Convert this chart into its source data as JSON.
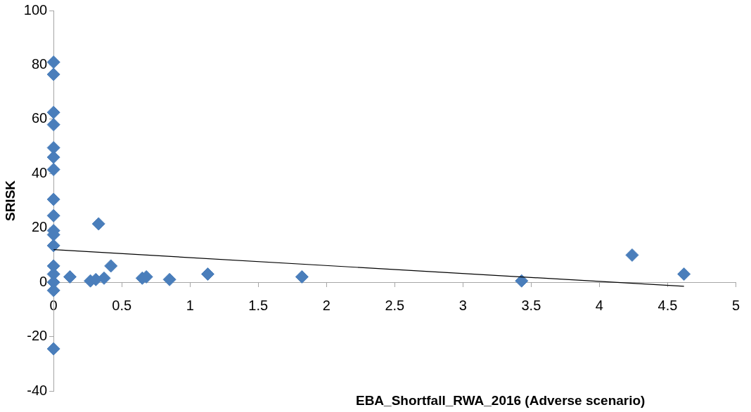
{
  "chart_data": {
    "type": "scatter",
    "xlabel": "EBA_Shortfall_RWA_2016 (Adverse scenario)",
    "ylabel": "SRISK",
    "grid": false,
    "legend": false,
    "xlim": [
      0,
      5
    ],
    "xticks": [
      0,
      0.5,
      1,
      1.5,
      2,
      2.5,
      3,
      3.5,
      4,
      4.5,
      5
    ],
    "ylim": [
      -40,
      100
    ],
    "yticks": [
      -40,
      -20,
      0,
      20,
      40,
      60,
      80,
      100
    ],
    "series": [
      {
        "marker": "diamond",
        "color": "#4a7ebb",
        "x": [
          0,
          0,
          0,
          0,
          0,
          0,
          0,
          0,
          0,
          0,
          0,
          0,
          0,
          0,
          0,
          0,
          0,
          0.12,
          0.27,
          0.31,
          0.37,
          0.42,
          0.33,
          0.65,
          0.68,
          0.85,
          1.13,
          1.82,
          3.43,
          4.24,
          4.62
        ],
        "values": [
          81,
          76.5,
          62.5,
          58,
          49.5,
          46,
          41.5,
          30.5,
          24.5,
          19,
          17.5,
          13.5,
          6,
          3,
          0,
          -3,
          -24.5,
          2,
          0.5,
          1,
          1.5,
          6,
          21.5,
          1.5,
          2,
          1,
          3,
          2,
          0.5,
          10,
          3
        ]
      },
      {
        "type": "line",
        "marker": "none",
        "color": "#000000",
        "x": [
          0,
          4.62
        ],
        "values": [
          12,
          -1.5
        ]
      }
    ]
  }
}
